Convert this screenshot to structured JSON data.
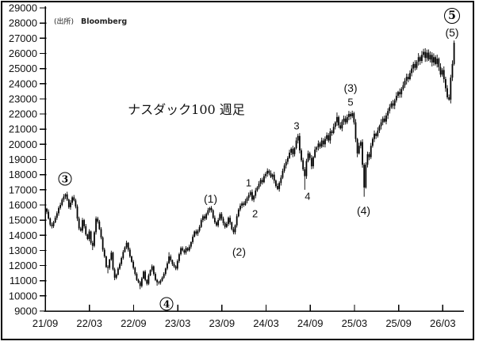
{
  "source": {
    "label": "(出所)",
    "value": "Bloomberg"
  },
  "title": "ナスダック100 週足",
  "colors": {
    "bar": "#000000",
    "axis": "#000000",
    "text": "#111111",
    "background": "#ffffff"
  },
  "axes": {
    "y": {
      "min": 9000,
      "max": 29000,
      "step": 1000
    },
    "x": {
      "labels": [
        "21/09",
        "22/03",
        "22/09",
        "23/03",
        "23/09",
        "24/03",
        "24/09",
        "25/03",
        "25/09",
        "26/03"
      ]
    }
  },
  "annotations": [
    {
      "text": "3",
      "circled": true,
      "week": 10.7,
      "price": 17700,
      "size": 17
    },
    {
      "text": "4",
      "circled": true,
      "week": 70.6,
      "price": 9450,
      "size": 17
    },
    {
      "text": "5",
      "circled": true,
      "week": 238.8,
      "price": 28500,
      "size": 20
    },
    {
      "text": "(1)",
      "circled": false,
      "week": 96.5,
      "price": 16400
    },
    {
      "text": "(2)",
      "circled": false,
      "week": 113.3,
      "price": 12900
    },
    {
      "text": "1",
      "circled": false,
      "week": 118.9,
      "price": 17450
    },
    {
      "text": "2",
      "circled": false,
      "week": 122.7,
      "price": 15400
    },
    {
      "text": "3",
      "circled": false,
      "week": 147.2,
      "price": 21200
    },
    {
      "text": "4",
      "circled": false,
      "week": 153.7,
      "price": 16550
    },
    {
      "text": "(3)",
      "circled": false,
      "week": 179.0,
      "price": 23750
    },
    {
      "text": "5",
      "circled": false,
      "week": 179.0,
      "price": 22800
    },
    {
      "text": "(4)",
      "circled": false,
      "week": 186.7,
      "price": 15650
    },
    {
      "text": "(5)",
      "circled": false,
      "week": 238.8,
      "price": 27400
    }
  ],
  "chart_data": {
    "type": "candlestick",
    "title": "ナスダック100 週足",
    "frequency": "weekly",
    "x_unit": "week index starting Sep 2021, tick every 26 weeks",
    "ylim": [
      9000,
      29000
    ],
    "grid": false,
    "closes": [
      15550,
      15100,
      14700,
      14600,
      14850,
      15150,
      15450,
      15800,
      16000,
      16350,
      16550,
      16700,
      16350,
      15850,
      16150,
      16500,
      16300,
      15900,
      15100,
      14450,
      14300,
      15000,
      14600,
      14050,
      13750,
      14250,
      13500,
      13300,
      14200,
      15100,
      14900,
      14400,
      13850,
      13050,
      12600,
      11900,
      11850,
      12400,
      12850,
      11750,
      11200,
      11400,
      11800,
      12100,
      12500,
      12900,
      13200,
      13500,
      13050,
      12600,
      12250,
      11850,
      11450,
      11050,
      10900,
      10650,
      11150,
      11600,
      11050,
      10800,
      11350,
      11700,
      11950,
      11450,
      11050,
      10900,
      10850,
      11000,
      11200,
      11450,
      11800,
      12150,
      12600,
      12350,
      12100,
      11950,
      11800,
      12300,
      12750,
      13150,
      13000,
      12850,
      13150,
      13000,
      13250,
      13550,
      13900,
      14250,
      14100,
      14300,
      14550,
      15000,
      15250,
      15100,
      15400,
      15650,
      15800,
      15650,
      15150,
      14850,
      14650,
      15000,
      15400,
      15100,
      14800,
      14550,
      14750,
      15150,
      14850,
      14400,
      14200,
      14650,
      15250,
      15700,
      15950,
      16100,
      16000,
      16250,
      16450,
      16650,
      16850,
      16350,
      16600,
      16950,
      17150,
      17400,
      17650,
      17500,
      17900,
      18050,
      18250,
      18100,
      17850,
      18000,
      17600,
      17250,
      17050,
      17450,
      17800,
      18250,
      18600,
      18850,
      19100,
      19450,
      19700,
      19350,
      19750,
      20250,
      20550,
      19600,
      18950,
      18350,
      17900,
      18900,
      19400,
      19100,
      18550,
      19150,
      19650,
      19800,
      20050,
      19850,
      20250,
      20000,
      20350,
      20600,
      20250,
      20850,
      20750,
      21150,
      21450,
      21800,
      21250,
      21050,
      21500,
      21700,
      21450,
      21800,
      22000,
      21850,
      22050,
      21450,
      20350,
      19400,
      19900,
      20150,
      18650,
      17150,
      18650,
      19350,
      19150,
      19900,
      20350,
      20700,
      20550,
      20900,
      21200,
      21450,
      21700,
      21500,
      21900,
      22200,
      22450,
      22700,
      22550,
      22900,
      23200,
      23450,
      23300,
      23650,
      23900,
      24200,
      24450,
      24300,
      24700,
      25000,
      25300,
      25050,
      25450,
      25750,
      25500,
      25900,
      26100,
      25700,
      26050,
      25600,
      25900,
      25400,
      25750,
      25300,
      25650,
      25100,
      24600,
      24900,
      24300,
      23700,
      23100,
      22950,
      24400,
      25300,
      26700
    ],
    "first_open": 15750,
    "high_overrides": {
      "11": 16765,
      "72": 12880,
      "97": 15930,
      "120": 16970,
      "130": 18415,
      "148": 20690,
      "171": 22100,
      "180": 22220,
      "222": 26300,
      "240": 26850
    },
    "low_overrides": {
      "27": 13020,
      "36": 11490,
      "40": 11035,
      "55": 10440,
      "65": 10670,
      "76": 11695,
      "100": 14560,
      "105": 14435,
      "110": 14060,
      "121": 16250,
      "136": 16975,
      "152": 17000,
      "183": 19150,
      "187": 16540,
      "237": 22870
    }
  }
}
